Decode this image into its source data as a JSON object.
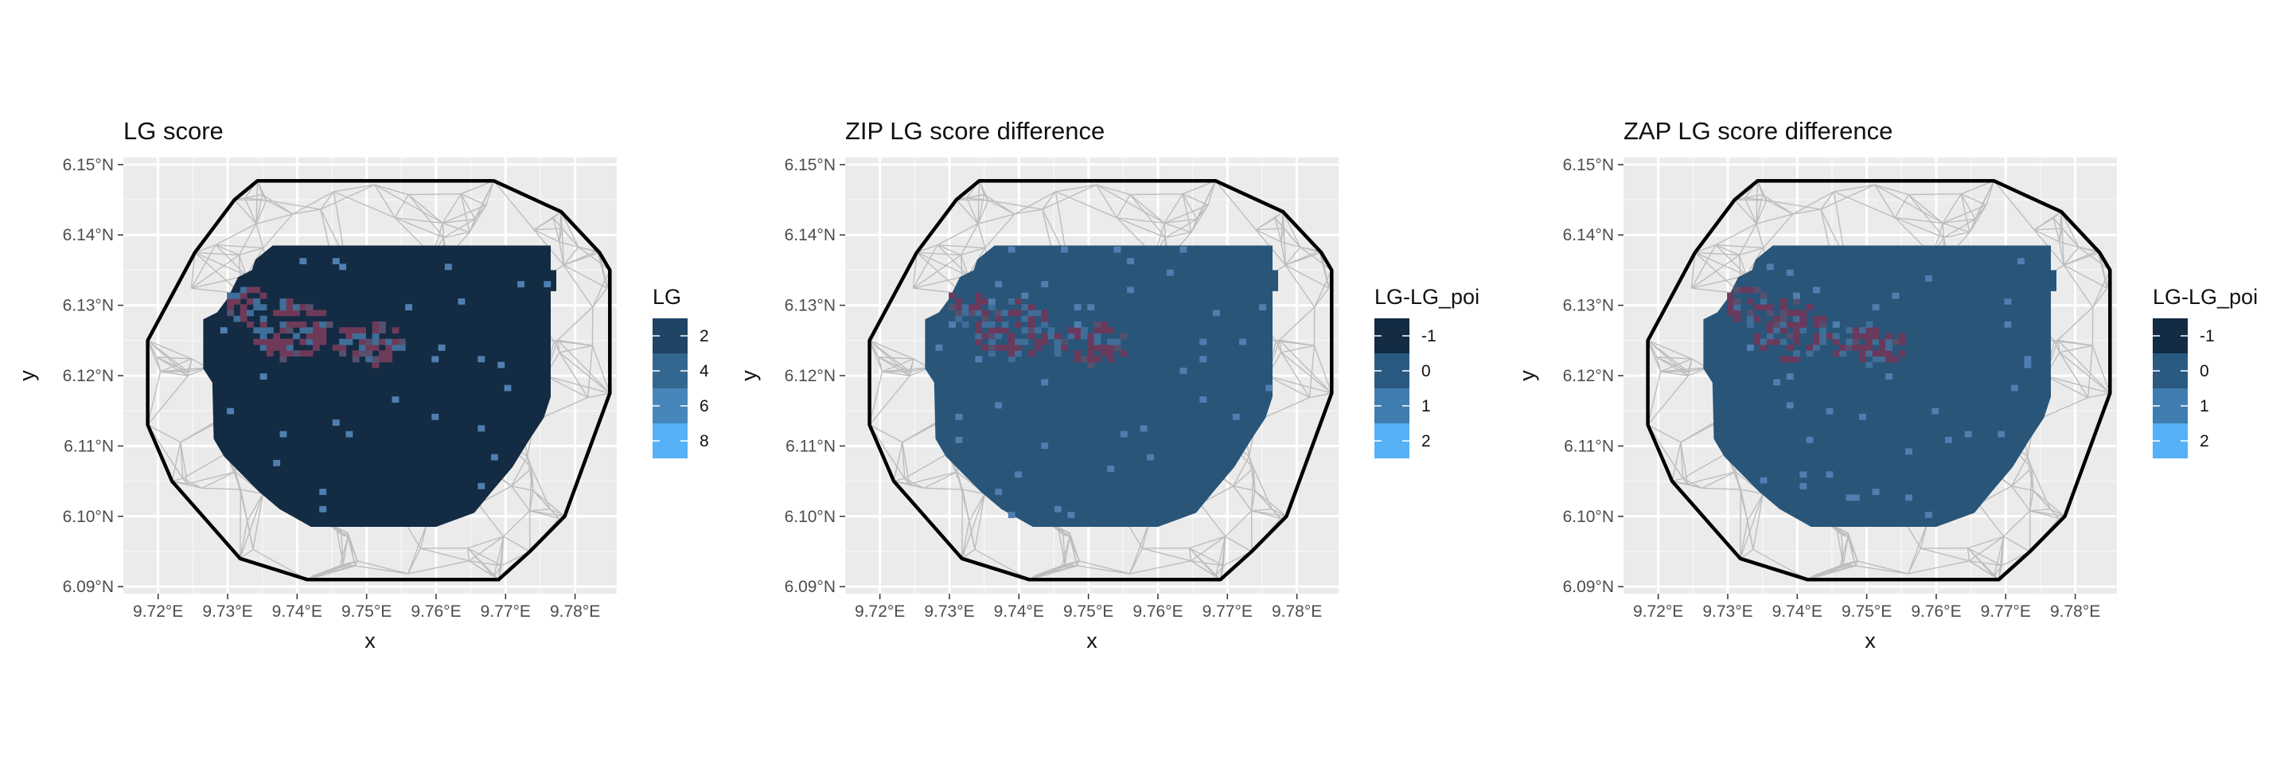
{
  "chart_data": [
    {
      "type": "heatmap",
      "title": "LG score",
      "xlabel": "x",
      "ylabel": "y",
      "xlim": [
        9.715,
        9.786
      ],
      "ylim": [
        6.089,
        6.151
      ],
      "x_ticks": [
        "9.72°E",
        "9.73°E",
        "9.74°E",
        "9.75°E",
        "9.76°E",
        "9.77°E",
        "9.78°E"
      ],
      "x_tick_values": [
        9.72,
        9.73,
        9.74,
        9.75,
        9.76,
        9.77,
        9.78
      ],
      "y_ticks": [
        "6.09°N",
        "6.10°N",
        "6.11°N",
        "6.12°N",
        "6.13°N",
        "6.14°N",
        "6.15°N"
      ],
      "y_tick_values": [
        6.09,
        6.1,
        6.11,
        6.12,
        6.13,
        6.14,
        6.15
      ],
      "legend": {
        "title": "LG",
        "labels": [
          "2",
          "4",
          "6",
          "8"
        ],
        "colors": [
          "#1f4466",
          "#34678f",
          "#4686bb",
          "#56b1f7"
        ]
      },
      "base_color": "#132b43",
      "cluster_color": "#6e3a58"
    },
    {
      "type": "heatmap",
      "title": "ZIP LG score difference",
      "xlabel": "x",
      "ylabel": "y",
      "xlim": [
        9.715,
        9.786
      ],
      "ylim": [
        6.089,
        6.151
      ],
      "x_ticks": [
        "9.72°E",
        "9.73°E",
        "9.74°E",
        "9.75°E",
        "9.76°E",
        "9.77°E",
        "9.78°E"
      ],
      "x_tick_values": [
        9.72,
        9.73,
        9.74,
        9.75,
        9.76,
        9.77,
        9.78
      ],
      "y_ticks": [
        "6.09°N",
        "6.10°N",
        "6.11°N",
        "6.12°N",
        "6.13°N",
        "6.14°N",
        "6.15°N"
      ],
      "y_tick_values": [
        6.09,
        6.1,
        6.11,
        6.12,
        6.13,
        6.14,
        6.15
      ],
      "legend": {
        "title": "LG-LG_poi",
        "labels": [
          "-1",
          "0",
          "1",
          "2"
        ],
        "colors": [
          "#132b43",
          "#2a5a82",
          "#3f7cb0",
          "#56b1f7"
        ]
      },
      "base_color": "#295579",
      "cluster_color": "#6a3a5c"
    },
    {
      "type": "heatmap",
      "title": "ZAP LG score difference",
      "xlabel": "x",
      "ylabel": "y",
      "xlim": [
        9.715,
        9.786
      ],
      "ylim": [
        6.089,
        6.151
      ],
      "x_ticks": [
        "9.72°E",
        "9.73°E",
        "9.74°E",
        "9.75°E",
        "9.76°E",
        "9.77°E",
        "9.78°E"
      ],
      "x_tick_values": [
        9.72,
        9.73,
        9.74,
        9.75,
        9.76,
        9.77,
        9.78
      ],
      "y_ticks": [
        "6.09°N",
        "6.10°N",
        "6.11°N",
        "6.12°N",
        "6.13°N",
        "6.14°N",
        "6.15°N"
      ],
      "y_tick_values": [
        6.09,
        6.1,
        6.11,
        6.12,
        6.13,
        6.14,
        6.15
      ],
      "legend": {
        "title": "LG-LG_poi",
        "labels": [
          "-1",
          "0",
          "1",
          "2"
        ],
        "colors": [
          "#132b43",
          "#2a5a82",
          "#3f7cb0",
          "#56b1f7"
        ]
      },
      "base_color": "#295579",
      "cluster_color": "#6a3a5c"
    }
  ],
  "study_boundary": [
    [
      9.7185,
      6.125
    ],
    [
      9.7253,
      6.1375
    ],
    [
      9.731,
      6.145
    ],
    [
      9.7343,
      6.1477
    ],
    [
      9.7683,
      6.1477
    ],
    [
      9.778,
      6.1433
    ],
    [
      9.7835,
      6.1375
    ],
    [
      9.785,
      6.135
    ],
    [
      9.785,
      6.1175
    ],
    [
      9.7785,
      6.1
    ],
    [
      9.7735,
      6.095
    ],
    [
      9.769,
      6.091
    ],
    [
      9.7415,
      6.091
    ],
    [
      9.7318,
      6.094
    ],
    [
      9.722,
      6.105
    ],
    [
      9.7185,
      6.113
    ]
  ],
  "raster_footprint": [
    [
      9.7365,
      6.1385
    ],
    [
      9.7435,
      6.1385
    ],
    [
      9.7435,
      6.1385
    ],
    [
      9.7765,
      6.1385
    ],
    [
      9.7765,
      6.135
    ],
    [
      9.7773,
      6.135
    ],
    [
      9.7773,
      6.132
    ],
    [
      9.7765,
      6.132
    ],
    [
      9.7765,
      6.117
    ],
    [
      9.7755,
      6.114
    ],
    [
      9.7735,
      6.111
    ],
    [
      9.771,
      6.107
    ],
    [
      9.768,
      6.1035
    ],
    [
      9.7655,
      6.1005
    ],
    [
      9.76,
      6.0985
    ],
    [
      9.742,
      6.0985
    ],
    [
      9.7375,
      6.101
    ],
    [
      9.7345,
      6.1035
    ],
    [
      9.732,
      6.106
    ],
    [
      9.7295,
      6.1085
    ],
    [
      9.728,
      6.111
    ],
    [
      9.7278,
      6.119
    ],
    [
      9.7265,
      6.121
    ],
    [
      9.7265,
      6.128
    ],
    [
      9.7285,
      6.129
    ],
    [
      9.73,
      6.131
    ],
    [
      9.7315,
      6.134
    ],
    [
      9.7335,
      6.135
    ],
    [
      9.734,
      6.1365
    ]
  ]
}
